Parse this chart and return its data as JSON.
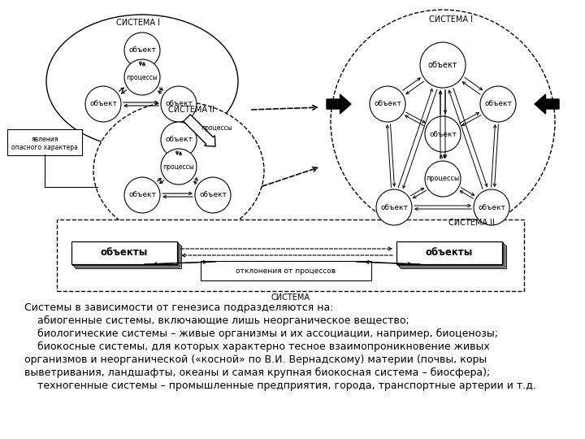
{
  "bg_color": "#ffffff",
  "text_block": [
    "Системы в зависимости от генезиса подразделяются на:",
    "    абиогенные системы, включающие лишь неорганическое вещество;",
    "    биологические системы – живые организмы и их ассоциации, например, биоценозы;",
    "    биокосные системы, для которых характерно тесное взаимопроникновение живых",
    "организмов и неорганической («косной» по В.И. Вернадскому) материи (почвы, коры",
    "выветривания, ландшафты, океаны и самая крупная биокосная система – биосфера);",
    "    техногенные системы – промышленные предприятия, города, транспортные артерии и т.д."
  ],
  "font_size_text": 9.0
}
